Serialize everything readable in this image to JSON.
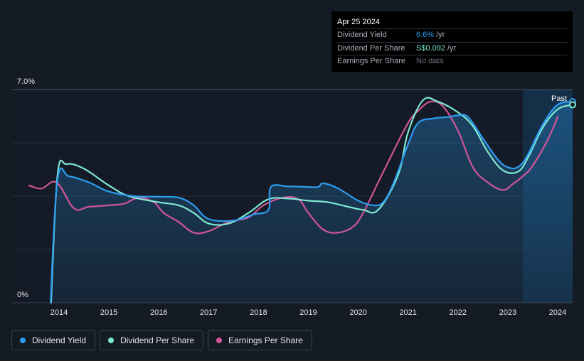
{
  "tooltip": {
    "date": "Apr 25 2024",
    "rows": [
      {
        "label": "Dividend Yield",
        "value": "6.6%",
        "unit": "/yr",
        "color": "#2d9cf0"
      },
      {
        "label": "Dividend Per Share",
        "value": "S$0.092",
        "unit": "/yr",
        "color": "#7de8d1"
      },
      {
        "label": "Earnings Per Share",
        "value": "No data",
        "unit": "",
        "color": "#6c7480"
      }
    ]
  },
  "legend": [
    {
      "label": "Dividend Yield",
      "color": "#2d9cf0"
    },
    {
      "label": "Dividend Per Share",
      "color": "#7de8d1"
    },
    {
      "label": "Earnings Per Share",
      "color": "#d0559a"
    }
  ],
  "chart_data": {
    "type": "line",
    "title": "",
    "ylim": [
      0,
      7.0
    ],
    "y_tick_labels": [
      "7.0%",
      "0%"
    ],
    "x_tick_labels": [
      "2014",
      "2015",
      "2016",
      "2017",
      "2018",
      "2019",
      "2020",
      "2021",
      "2022",
      "2023",
      "2024"
    ],
    "xlim": [
      2013.4,
      2024.3
    ],
    "past_label": "Past",
    "past_region_start": 2023.3,
    "series": [
      {
        "name": "Dividend Yield",
        "color": "#2d9cf0",
        "x": [
          2013.83,
          2013.97,
          2014.2,
          2014.6,
          2015.0,
          2015.5,
          2016.0,
          2016.4,
          2016.7,
          2017.0,
          2017.5,
          2017.9,
          2018.2,
          2018.25,
          2018.6,
          2019.0,
          2019.2,
          2019.3,
          2019.6,
          2020.0,
          2020.3,
          2020.5,
          2020.7,
          2021.0,
          2021.2,
          2021.5,
          2021.8,
          2022.0,
          2022.2,
          2022.5,
          2022.8,
          2023.0,
          2023.2,
          2023.4,
          2023.7,
          2024.0,
          2024.3
        ],
        "y": [
          0.0,
          4.05,
          4.15,
          3.95,
          3.65,
          3.5,
          3.48,
          3.45,
          3.2,
          2.75,
          2.7,
          2.9,
          3.05,
          3.8,
          3.82,
          3.8,
          3.8,
          3.92,
          3.75,
          3.35,
          3.2,
          3.3,
          3.9,
          5.2,
          5.9,
          6.05,
          6.1,
          6.15,
          6.1,
          5.4,
          4.7,
          4.45,
          4.45,
          4.85,
          5.85,
          6.5,
          6.6
        ]
      },
      {
        "name": "Dividend Per Share",
        "color": "#7de8d1",
        "x": [
          2013.84,
          2013.97,
          2014.15,
          2014.5,
          2015.0,
          2015.4,
          2016.0,
          2016.4,
          2016.7,
          2017.0,
          2017.4,
          2017.8,
          2018.2,
          2018.6,
          2019.0,
          2019.4,
          2019.8,
          2020.1,
          2020.4,
          2020.8,
          2021.0,
          2021.3,
          2021.6,
          2022.0,
          2022.3,
          2022.6,
          2022.9,
          2023.2,
          2023.4,
          2023.7,
          2024.0,
          2024.3
        ],
        "y": [
          0.0,
          4.2,
          4.55,
          4.4,
          3.85,
          3.5,
          3.3,
          3.2,
          2.95,
          2.6,
          2.6,
          2.95,
          3.4,
          3.42,
          3.35,
          3.3,
          3.15,
          3.05,
          3.05,
          4.2,
          5.6,
          6.65,
          6.6,
          6.25,
          5.8,
          4.95,
          4.35,
          4.3,
          4.75,
          5.75,
          6.35,
          6.5
        ]
      },
      {
        "name": "Earnings Per Share",
        "color": "#d0559a",
        "x": [
          2013.4,
          2013.65,
          2013.95,
          2014.3,
          2014.6,
          2015.0,
          2015.3,
          2015.6,
          2015.9,
          2016.1,
          2016.4,
          2016.7,
          2017.0,
          2017.4,
          2017.8,
          2018.1,
          2018.5,
          2018.8,
          2019.0,
          2019.3,
          2019.6,
          2019.9,
          2020.1,
          2020.4,
          2020.7,
          2021.0,
          2021.2,
          2021.45,
          2021.7,
          2022.0,
          2022.3,
          2022.6,
          2022.9,
          2023.1,
          2023.3,
          2023.5,
          2023.8,
          2024.0
        ],
        "y": [
          3.85,
          3.75,
          3.95,
          3.1,
          3.15,
          3.2,
          3.25,
          3.45,
          3.3,
          2.95,
          2.65,
          2.3,
          2.35,
          2.65,
          2.8,
          3.2,
          3.45,
          3.4,
          2.95,
          2.4,
          2.3,
          2.5,
          2.95,
          3.95,
          4.95,
          5.9,
          6.3,
          6.6,
          6.45,
          5.65,
          4.45,
          3.95,
          3.7,
          3.9,
          4.15,
          4.5,
          5.35,
          6.1
        ]
      }
    ]
  }
}
